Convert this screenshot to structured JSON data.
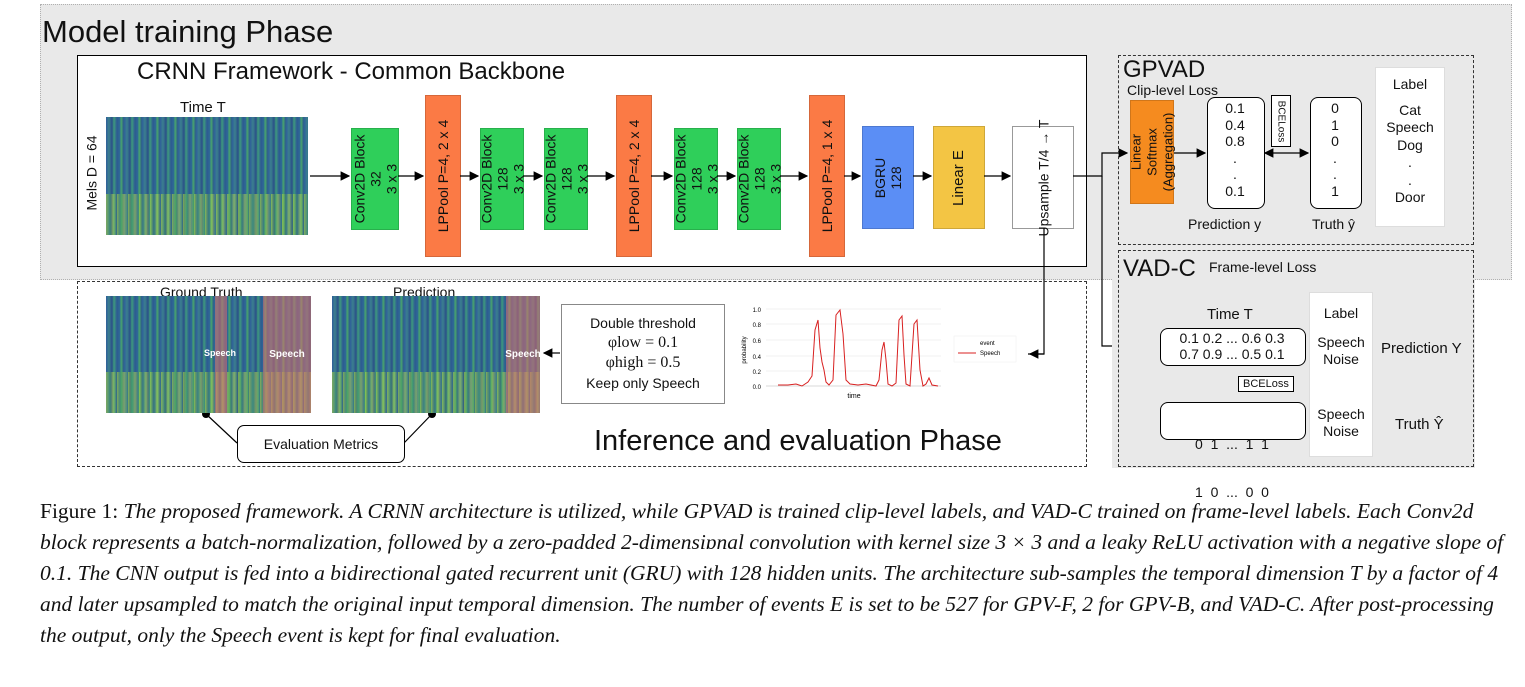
{
  "training_phase": {
    "title": "Model training Phase",
    "backbone_title": "CRNN Framework - Common Backbone",
    "input": {
      "time_label": "Time T",
      "mels_label": "Mels D = 64"
    },
    "blocks": [
      {
        "label": "Conv2D Block\n32\n3 x 3",
        "color": "#2fcf5a"
      },
      {
        "label": "LPPool P=4, 2 x 4",
        "color": "#fb7a45"
      },
      {
        "label": "Conv2D Block\n128\n3 x 3",
        "color": "#2fcf5a"
      },
      {
        "label": "Conv2D Block\n128\n3 x 3",
        "color": "#2fcf5a"
      },
      {
        "label": "LPPool P=4, 2 x 4",
        "color": "#fb7a45"
      },
      {
        "label": "Conv2D Block\n128\n3 x 3",
        "color": "#2fcf5a"
      },
      {
        "label": "Conv2D Block\n128\n3 x 3",
        "color": "#2fcf5a"
      },
      {
        "label": "LPPool P=4, 1 x 4",
        "color": "#fb7a45"
      },
      {
        "label": "BGRU\n128",
        "color": "#5b8ef5"
      },
      {
        "label": "Linear E",
        "color": "#f3c544"
      },
      {
        "label": "Upsample\nT/4 → T",
        "color": "#ffffff"
      }
    ]
  },
  "gpvad": {
    "title": "GPVAD",
    "subtitle": "Clip-level Loss",
    "aggregation": "Linear\nSoftmax\n(Aggregation)",
    "prediction_values": [
      "0.1",
      "0.4",
      "0.8",
      ".",
      ".",
      "0.1"
    ],
    "truth_values": [
      "0",
      "1",
      "0",
      ".",
      ".",
      "1"
    ],
    "loss": "BCELoss",
    "prediction_label": "Prediction y",
    "truth_label": "Truth ŷ",
    "label_header": "Label",
    "labels": [
      "Cat",
      "Speech",
      "Dog",
      ".",
      ".",
      "Door"
    ]
  },
  "vadc": {
    "title": "VAD-C",
    "subtitle": "Frame-level Loss",
    "time_label": "Time T",
    "prediction_rows": [
      "0.1 0.2 ... 0.6 0.3",
      "0.7 0.9 ... 0.5 0.1"
    ],
    "truth_rows": [
      "0  1  ...  1  1",
      "1  0  ...  0  0"
    ],
    "loss": "BCELoss",
    "label_header": "Label",
    "labels_pred": [
      "Speech",
      "Noise"
    ],
    "labels_truth": [
      "Speech",
      "Noise"
    ],
    "prediction_label": "Prediction Y",
    "truth_label": "Truth Ŷ"
  },
  "inference_phase": {
    "title": "Inference and evaluation Phase",
    "ground_truth_label": "Ground Truth",
    "prediction_label": "Prediction",
    "speech_tag": "Speech",
    "threshold_box": [
      "Double threshold",
      "φlow = 0.1",
      "φhigh = 0.5",
      "Keep only Speech"
    ],
    "eval_metrics": "Evaluation Metrics",
    "plot": {
      "ylabel": "probability",
      "xlabel": "time",
      "legend_title": "event",
      "legend_series": "Speech",
      "yticks": [
        "0.0",
        "0.2",
        "0.4",
        "0.6",
        "0.8",
        "1.0"
      ]
    }
  },
  "caption": {
    "lead": "Figure 1:",
    "text": "The proposed framework. A CRNN architecture is utilized, while GPVAD is trained clip-level labels, and VAD-C trained on frame-level labels. Each Conv2d block represents a batch-normalization, followed by a zero-padded 2-dimensiɒnal convolution with kernel size 3 × 3 and a leaky ReLU activation with a negative slope of 0.1. The CNN output is fed into a bidirectional gated recurrent unit (GRU) with 128 hidden units. The architecture sub-samples the temporal dimension T by a factor of 4 and later upsampled to match the original input temporal dimension. The number of events E is set to be 527 for GPV-F, 2 for GPV-B, and VAD-C. After post-processing the output, only the Speech event is kept for final evaluation."
  }
}
